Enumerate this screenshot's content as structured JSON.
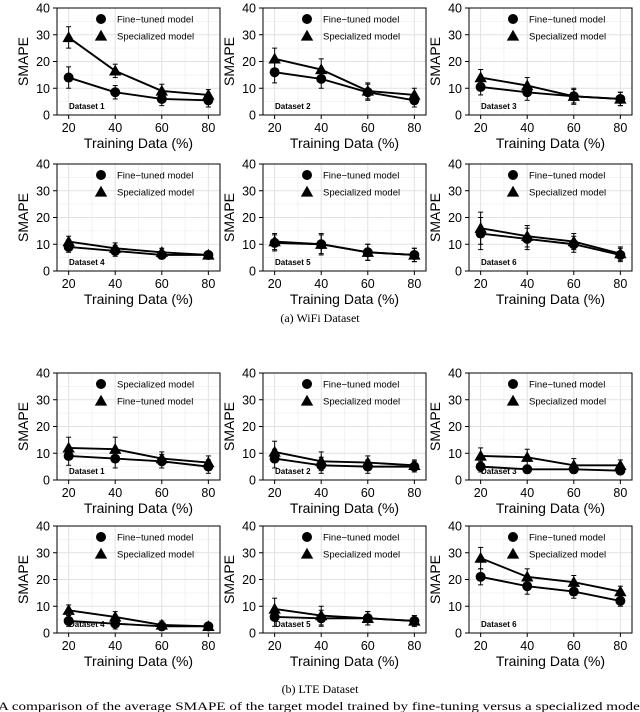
{
  "captions": {
    "wifi": "(a) WiFi Dataset",
    "lte": "(b) LTE Dataset"
  },
  "bottom_text": "A comparison of the average SMAPE of the target model trained by fine-tuning versus a specialized model",
  "chart_data": [
    {
      "type": "line",
      "group": "wifi",
      "dataset": "Dataset 1",
      "xlabel": "Training Data (%)",
      "ylabel": "SMAPE",
      "x": [
        20,
        40,
        60,
        80
      ],
      "xticks": [
        20,
        40,
        60,
        80
      ],
      "yticks": [
        0,
        10,
        20,
        30,
        40
      ],
      "ylim": [
        0,
        40
      ],
      "legend": [
        {
          "name": "Fine−tuned model",
          "marker": "circle"
        },
        {
          "name": "Specialized model",
          "marker": "triangle"
        }
      ],
      "series": [
        {
          "name": "Fine-tuned model",
          "marker": "circle",
          "values": [
            14,
            8.5,
            6,
            5.5
          ],
          "errors": [
            4,
            2.5,
            2.5,
            2.5
          ]
        },
        {
          "name": "Specialized model",
          "marker": "triangle",
          "values": [
            29,
            16.5,
            9,
            7.5
          ],
          "errors": [
            4,
            2.5,
            2.5,
            2
          ]
        }
      ]
    },
    {
      "type": "line",
      "group": "wifi",
      "dataset": "Dataset 2",
      "xlabel": "Training Data (%)",
      "ylabel": "SMAPE",
      "x": [
        20,
        40,
        60,
        80
      ],
      "xticks": [
        20,
        40,
        60,
        80
      ],
      "yticks": [
        0,
        10,
        20,
        30,
        40
      ],
      "ylim": [
        0,
        40
      ],
      "legend": [
        {
          "name": "Fine−tuned model",
          "marker": "circle"
        },
        {
          "name": "Specialized model",
          "marker": "triangle"
        }
      ],
      "series": [
        {
          "name": "Fine-tuned model",
          "marker": "circle",
          "values": [
            16,
            13.5,
            8.5,
            5.5
          ],
          "errors": [
            4,
            3.5,
            3,
            2.5
          ]
        },
        {
          "name": "Specialized model",
          "marker": "triangle",
          "values": [
            21,
            17,
            9,
            7.5
          ],
          "errors": [
            4,
            4,
            3,
            2.5
          ]
        }
      ]
    },
    {
      "type": "line",
      "group": "wifi",
      "dataset": "Dataset 3",
      "xlabel": "Training Data (%)",
      "ylabel": "SMAPE",
      "x": [
        20,
        40,
        60,
        80
      ],
      "xticks": [
        20,
        40,
        60,
        80
      ],
      "yticks": [
        0,
        10,
        20,
        30,
        40
      ],
      "ylim": [
        0,
        40
      ],
      "legend": [
        {
          "name": "Fine−tuned model",
          "marker": "circle"
        },
        {
          "name": "Specialized model",
          "marker": "triangle"
        }
      ],
      "series": [
        {
          "name": "Fine-tuned model",
          "marker": "circle",
          "values": [
            10.5,
            8.5,
            7,
            6
          ],
          "errors": [
            3,
            3,
            3,
            2.5
          ]
        },
        {
          "name": "Specialized model",
          "marker": "triangle",
          "values": [
            14,
            11,
            7,
            6
          ],
          "errors": [
            3,
            3,
            2.5,
            2.5
          ]
        }
      ]
    },
    {
      "type": "line",
      "group": "wifi",
      "dataset": "Dataset 4",
      "xlabel": "Training Data (%)",
      "ylabel": "SMAPE",
      "x": [
        20,
        40,
        60,
        80
      ],
      "xticks": [
        20,
        40,
        60,
        80
      ],
      "yticks": [
        0,
        10,
        20,
        30,
        40
      ],
      "ylim": [
        0,
        40
      ],
      "legend": [
        {
          "name": "Fine−tuned model",
          "marker": "circle"
        },
        {
          "name": "Specialized model",
          "marker": "triangle"
        }
      ],
      "series": [
        {
          "name": "Fine-tuned model",
          "marker": "circle",
          "values": [
            9,
            7.5,
            6,
            6
          ],
          "errors": [
            2,
            2,
            1.5,
            1
          ]
        },
        {
          "name": "Specialized model",
          "marker": "triangle",
          "values": [
            11,
            8.5,
            7,
            6
          ],
          "errors": [
            2,
            2,
            1.5,
            1
          ]
        }
      ]
    },
    {
      "type": "line",
      "group": "wifi",
      "dataset": "Dataset 5",
      "xlabel": "Training Data (%)",
      "ylabel": "SMAPE",
      "x": [
        20,
        40,
        60,
        80
      ],
      "xticks": [
        20,
        40,
        60,
        80
      ],
      "yticks": [
        0,
        10,
        20,
        30,
        40
      ],
      "ylim": [
        0,
        40
      ],
      "legend": [
        {
          "name": "Fine−tuned model",
          "marker": "circle"
        },
        {
          "name": "Specialized model",
          "marker": "triangle"
        }
      ],
      "series": [
        {
          "name": "Fine-tuned model",
          "marker": "circle",
          "values": [
            10.5,
            10,
            7,
            6
          ],
          "errors": [
            3,
            4,
            3,
            2.5
          ]
        },
        {
          "name": "Specialized model",
          "marker": "triangle",
          "values": [
            11,
            10,
            7,
            6
          ],
          "errors": [
            3,
            3.5,
            3,
            2.5
          ]
        }
      ]
    },
    {
      "type": "line",
      "group": "wifi",
      "dataset": "Dataset 6",
      "xlabel": "Training Data (%)",
      "ylabel": "SMAPE",
      "x": [
        20,
        40,
        60,
        80
      ],
      "xticks": [
        20,
        40,
        60,
        80
      ],
      "yticks": [
        0,
        10,
        20,
        30,
        40
      ],
      "ylim": [
        0,
        40
      ],
      "legend": [
        {
          "name": "Fine−tuned model",
          "marker": "circle"
        },
        {
          "name": "Specialized model",
          "marker": "triangle"
        }
      ],
      "series": [
        {
          "name": "Fine-tuned model",
          "marker": "circle",
          "values": [
            14,
            12,
            10,
            6
          ],
          "errors": [
            6,
            4,
            3,
            2.5
          ]
        },
        {
          "name": "Specialized model",
          "marker": "triangle",
          "values": [
            16,
            13,
            11,
            6.5
          ],
          "errors": [
            6,
            4,
            3,
            2.5
          ]
        }
      ]
    },
    {
      "type": "line",
      "group": "lte",
      "dataset": "Dataset 1",
      "xlabel": "Training Data (%)",
      "ylabel": "SMAPE",
      "x": [
        20,
        40,
        60,
        80
      ],
      "xticks": [
        20,
        40,
        60,
        80
      ],
      "yticks": [
        0,
        10,
        20,
        30,
        40
      ],
      "ylim": [
        0,
        40
      ],
      "legend": [
        {
          "name": "Specialized model",
          "marker": "circle"
        },
        {
          "name": "Fine−tuned model",
          "marker": "triangle"
        }
      ],
      "series": [
        {
          "name": "Specialized model",
          "marker": "circle",
          "values": [
            9,
            8,
            7,
            5
          ],
          "errors": [
            3.5,
            3.5,
            2.5,
            2.5
          ]
        },
        {
          "name": "Fine-tuned model",
          "marker": "triangle",
          "values": [
            12,
            11.5,
            8,
            6.5
          ],
          "errors": [
            4,
            4.5,
            2.5,
            2.5
          ]
        }
      ]
    },
    {
      "type": "line",
      "group": "lte",
      "dataset": "Dataset 2",
      "xlabel": "Training Data (%)",
      "ylabel": "SMAPE",
      "x": [
        20,
        40,
        60,
        80
      ],
      "xticks": [
        20,
        40,
        60,
        80
      ],
      "yticks": [
        0,
        10,
        20,
        30,
        40
      ],
      "ylim": [
        0,
        40
      ],
      "legend": [
        {
          "name": "Fine−tuned model",
          "marker": "circle"
        },
        {
          "name": "Specialized model",
          "marker": "triangle"
        }
      ],
      "series": [
        {
          "name": "Fine-tuned model",
          "marker": "circle",
          "values": [
            8,
            5.5,
            5,
            5
          ],
          "errors": [
            3.5,
            3,
            2.5,
            2
          ]
        },
        {
          "name": "Specialized model",
          "marker": "triangle",
          "values": [
            10.5,
            7,
            6.5,
            5.5
          ],
          "errors": [
            4,
            3.5,
            2.5,
            2
          ]
        }
      ]
    },
    {
      "type": "line",
      "group": "lte",
      "dataset": "Dataset 3",
      "xlabel": "Training Data (%)",
      "ylabel": "SMAPE",
      "x": [
        20,
        40,
        60,
        80
      ],
      "xticks": [
        20,
        40,
        60,
        80
      ],
      "yticks": [
        0,
        10,
        20,
        30,
        40
      ],
      "ylim": [
        0,
        40
      ],
      "legend": [
        {
          "name": "Fine−tuned model",
          "marker": "circle"
        },
        {
          "name": "Specialized model",
          "marker": "triangle"
        }
      ],
      "series": [
        {
          "name": "Fine-tuned model",
          "marker": "circle",
          "values": [
            5,
            4,
            4,
            3.5
          ],
          "errors": [
            2,
            1.5,
            1.5,
            1.5
          ]
        },
        {
          "name": "Specialized model",
          "marker": "triangle",
          "values": [
            9,
            8.5,
            5.5,
            5.5
          ],
          "errors": [
            3,
            3,
            2.5,
            2
          ]
        }
      ]
    },
    {
      "type": "line",
      "group": "lte",
      "dataset": "Dataset 4",
      "xlabel": "Training Data (%)",
      "ylabel": "SMAPE",
      "x": [
        20,
        40,
        60,
        80
      ],
      "xticks": [
        20,
        40,
        60,
        80
      ],
      "yticks": [
        0,
        10,
        20,
        30,
        40
      ],
      "ylim": [
        0,
        40
      ],
      "legend": [
        {
          "name": "Fine−tuned model",
          "marker": "circle"
        },
        {
          "name": "Specialized model",
          "marker": "triangle"
        }
      ],
      "series": [
        {
          "name": "Fine-tuned model",
          "marker": "circle",
          "values": [
            4.5,
            3.5,
            2.5,
            2.5
          ],
          "errors": [
            2,
            2,
            1.5,
            1
          ]
        },
        {
          "name": "Specialized model",
          "marker": "triangle",
          "values": [
            8.5,
            6,
            3,
            2.5
          ],
          "errors": [
            2,
            2,
            1.5,
            1
          ]
        }
      ]
    },
    {
      "type": "line",
      "group": "lte",
      "dataset": "Dataset 5",
      "xlabel": "Training Data (%)",
      "ylabel": "SMAPE",
      "x": [
        20,
        40,
        60,
        80
      ],
      "xticks": [
        20,
        40,
        60,
        80
      ],
      "yticks": [
        0,
        10,
        20,
        30,
        40
      ],
      "ylim": [
        0,
        40
      ],
      "legend": [
        {
          "name": "Fine−tuned model",
          "marker": "circle"
        },
        {
          "name": "Specialized model",
          "marker": "triangle"
        }
      ],
      "series": [
        {
          "name": "Fine-tuned model",
          "marker": "circle",
          "values": [
            6,
            5.5,
            5.5,
            4.5
          ],
          "errors": [
            3.5,
            3,
            2.5,
            2
          ]
        },
        {
          "name": "Specialized model",
          "marker": "triangle",
          "values": [
            9,
            6.5,
            5.5,
            4.5
          ],
          "errors": [
            4,
            3.5,
            2.5,
            2
          ]
        }
      ]
    },
    {
      "type": "line",
      "group": "lte",
      "dataset": "Dataset 6",
      "xlabel": "Training Data (%)",
      "ylabel": "SMAPE",
      "x": [
        20,
        40,
        60,
        80
      ],
      "xticks": [
        20,
        40,
        60,
        80
      ],
      "yticks": [
        0,
        10,
        20,
        30,
        40
      ],
      "ylim": [
        0,
        40
      ],
      "legend": [
        {
          "name": "Fine−tuned model",
          "marker": "circle"
        },
        {
          "name": "Specialized model",
          "marker": "triangle"
        }
      ],
      "series": [
        {
          "name": "Fine-tuned model",
          "marker": "circle",
          "values": [
            21,
            17.5,
            15.5,
            12
          ],
          "errors": [
            3,
            3,
            2.5,
            2
          ]
        },
        {
          "name": "Specialized model",
          "marker": "triangle",
          "values": [
            28,
            21,
            19,
            15.5
          ],
          "errors": [
            4,
            3,
            2.5,
            2
          ]
        }
      ]
    }
  ]
}
